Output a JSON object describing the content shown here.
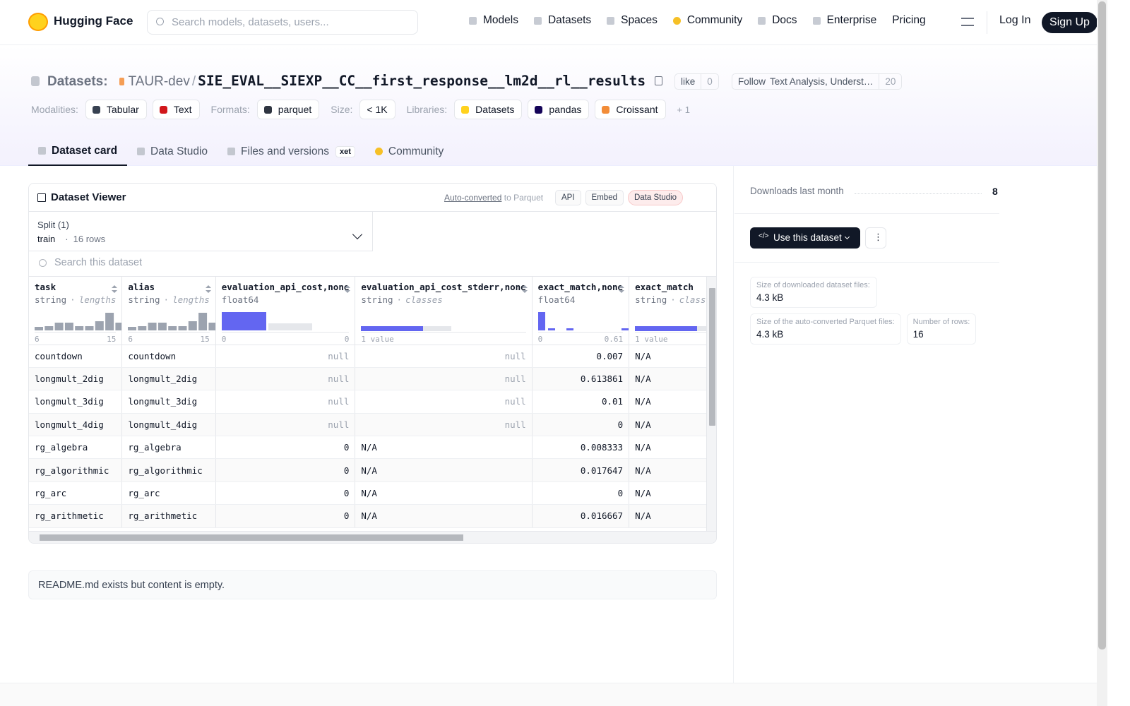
{
  "nav": {
    "brand": "Hugging Face",
    "search_placeholder": "Search models, datasets, users...",
    "links": [
      "Models",
      "Datasets",
      "Spaces",
      "Community",
      "Docs",
      "Enterprise",
      "Pricing"
    ],
    "login": "Log In",
    "signup": "Sign Up"
  },
  "header": {
    "section": "Datasets:",
    "owner": "TAUR-dev",
    "separator": "/",
    "name": "SIE_EVAL__SIEXP__CC__first_response__lm2d__rl__results",
    "like": "like",
    "like_count": 0,
    "follow": "Follow",
    "org": "Text Analysis, Underst…",
    "follow_count": 20,
    "tags": [
      {
        "label": "Modalities:",
        "items": [
          "Tabular",
          "Text"
        ]
      },
      {
        "label": "Formats:",
        "items": [
          "parquet"
        ]
      },
      {
        "label": "Size:",
        "items": [
          "< 1K"
        ]
      },
      {
        "label": "Libraries:",
        "items": [
          "Datasets",
          "pandas",
          "Croissant"
        ]
      }
    ],
    "more": "+ 1"
  },
  "tabs": {
    "items": [
      "Dataset card",
      "Data Studio",
      "Files and versions",
      "Community"
    ],
    "badge": "xet"
  },
  "viewer": {
    "title": "Dataset Viewer",
    "auto_converted": "Auto-converted",
    "to_parquet": "to Parquet",
    "buttons": [
      "API",
      "Embed",
      "Data Studio"
    ],
    "split_label": "Split (1)",
    "split": "train",
    "row_count": "16 rows",
    "search": "Search this dataset",
    "columns": [
      {
        "name": "task",
        "type": "string",
        "stat": "lengths",
        "axis": [
          "6",
          "15"
        ]
      },
      {
        "name": "alias",
        "type": "string",
        "stat": "lengths",
        "axis": [
          "6",
          "15"
        ]
      },
      {
        "name": "evaluation_api_cost,none",
        "type": "float64",
        "axis": [
          "0",
          "0"
        ]
      },
      {
        "name": "evaluation_api_cost_stderr,none",
        "type": "string",
        "stat": "classes",
        "axis": [
          "1 value"
        ]
      },
      {
        "name": "exact_match,none",
        "type": "float64",
        "axis": [
          "0",
          "0.61"
        ]
      },
      {
        "name": "exact_match",
        "type": "string",
        "stat": "classes",
        "axis": [
          "1 value"
        ]
      }
    ],
    "rows": [
      [
        "countdown",
        "countdown",
        "null",
        "null",
        0.007,
        "N/A"
      ],
      [
        "longmult_2dig",
        "longmult_2dig",
        "null",
        "null",
        0.613861,
        "N/A"
      ],
      [
        "longmult_3dig",
        "longmult_3dig",
        "null",
        "null",
        0.01,
        "N/A"
      ],
      [
        "longmult_4dig",
        "longmult_4dig",
        "null",
        "null",
        0,
        "N/A"
      ],
      [
        "rg_algebra",
        "rg_algebra",
        0,
        "N/A",
        0.008333,
        "N/A"
      ],
      [
        "rg_algorithmic",
        "rg_algorithmic",
        0,
        "N/A",
        0.017647,
        "N/A"
      ],
      [
        "rg_arc",
        "rg_arc",
        0,
        "N/A",
        0,
        "N/A"
      ],
      [
        "rg_arithmetic",
        "rg_arithmetic",
        0,
        "N/A",
        0.016667,
        "N/A"
      ]
    ]
  },
  "readme": "README.md exists but content is empty.",
  "sidebar": {
    "downloads_label": "Downloads last month",
    "downloads": 8,
    "use": "Use this dataset",
    "stats": [
      {
        "label": "Size of downloaded dataset files:",
        "value": "4.3 kB"
      },
      {
        "label": "Size of the auto-converted Parquet files:",
        "value": "4.3 kB"
      },
      {
        "label": "Number of rows:",
        "value": "16"
      }
    ]
  }
}
